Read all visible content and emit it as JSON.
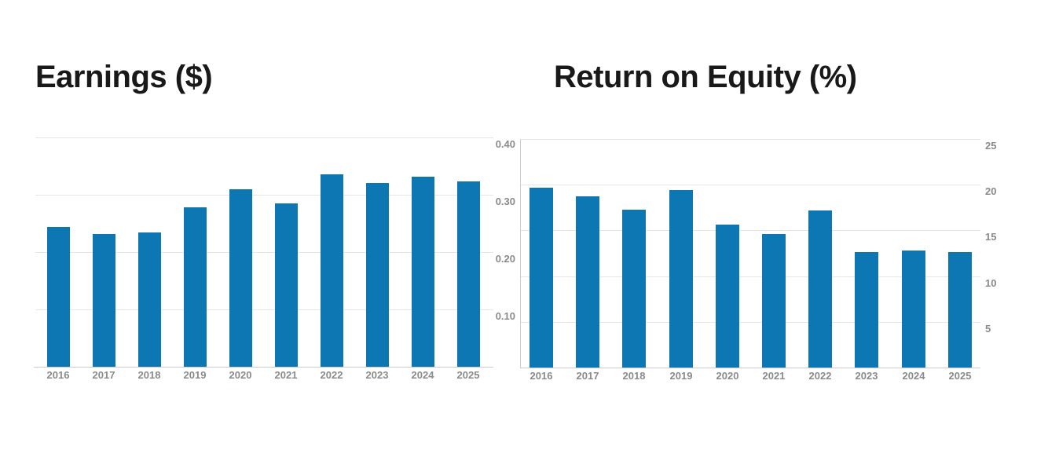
{
  "page": {
    "background": "#ffffff"
  },
  "styles": {
    "bar_color": "#0d77b3",
    "grid_color": "#e6e6e6",
    "axis_color": "#cbcbcb",
    "axis_label_color": "#8a8a8a",
    "title_color": "#191919"
  },
  "chart_data": [
    {
      "type": "bar",
      "title": "Earnings ($)",
      "categories": [
        "2016",
        "2017",
        "2018",
        "2019",
        "2020",
        "2021",
        "2022",
        "2023",
        "2024",
        "2025"
      ],
      "values": [
        0.244,
        0.232,
        0.235,
        0.278,
        0.309,
        0.285,
        0.335,
        0.32,
        0.331,
        0.324
      ],
      "xlabel": "",
      "ylabel": "",
      "ylim": [
        0,
        0.4
      ],
      "yticks": [
        0.1,
        0.2,
        0.3,
        0.4
      ],
      "ytick_labels": [
        "0.10",
        "0.20",
        "0.30",
        "0.40"
      ],
      "yaxis_side": "right",
      "grid": "horizontal",
      "legend": "none",
      "bar_color": "#0d77b3"
    },
    {
      "type": "bar",
      "title": "Return on Equity (%)",
      "categories": [
        "2016",
        "2017",
        "2018",
        "2019",
        "2020",
        "2021",
        "2022",
        "2023",
        "2024",
        "2025"
      ],
      "values": [
        19.7,
        18.7,
        17.3,
        19.4,
        15.6,
        14.6,
        17.2,
        12.6,
        12.8,
        12.6
      ],
      "xlabel": "",
      "ylabel": "",
      "ylim": [
        0,
        25
      ],
      "yticks": [
        5,
        10,
        15,
        20,
        25
      ],
      "ytick_labels": [
        "5",
        "10",
        "15",
        "20",
        "25"
      ],
      "yaxis_side": "right",
      "grid": "horizontal",
      "legend": "none",
      "bar_color": "#0d77b3"
    }
  ]
}
